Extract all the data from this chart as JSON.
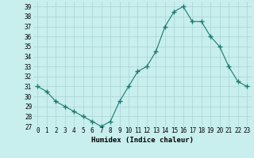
{
  "x": [
    0,
    1,
    2,
    3,
    4,
    5,
    6,
    7,
    8,
    9,
    10,
    11,
    12,
    13,
    14,
    15,
    16,
    17,
    18,
    19,
    20,
    21,
    22,
    23
  ],
  "y": [
    31,
    30.5,
    29.5,
    29,
    28.5,
    28,
    27.5,
    27,
    27.5,
    29.5,
    31,
    32.5,
    33,
    34.5,
    37,
    38.5,
    39,
    37.5,
    37.5,
    36,
    35,
    33,
    31.5,
    31
  ],
  "xlabel": "Humidex (Indice chaleur)",
  "line_color": "#1a7a6e",
  "marker": "+",
  "marker_size": 4,
  "bg_color": "#c8eeee",
  "grid_color": "#a8d4d4",
  "xlim": [
    -0.5,
    23.5
  ],
  "ylim": [
    27,
    39.5
  ],
  "yticks": [
    27,
    28,
    29,
    30,
    31,
    32,
    33,
    34,
    35,
    36,
    37,
    38,
    39
  ],
  "xticks": [
    0,
    1,
    2,
    3,
    4,
    5,
    6,
    7,
    8,
    9,
    10,
    11,
    12,
    13,
    14,
    15,
    16,
    17,
    18,
    19,
    20,
    21,
    22,
    23
  ],
  "tick_fontsize": 5.5,
  "xlabel_fontsize": 6.5
}
